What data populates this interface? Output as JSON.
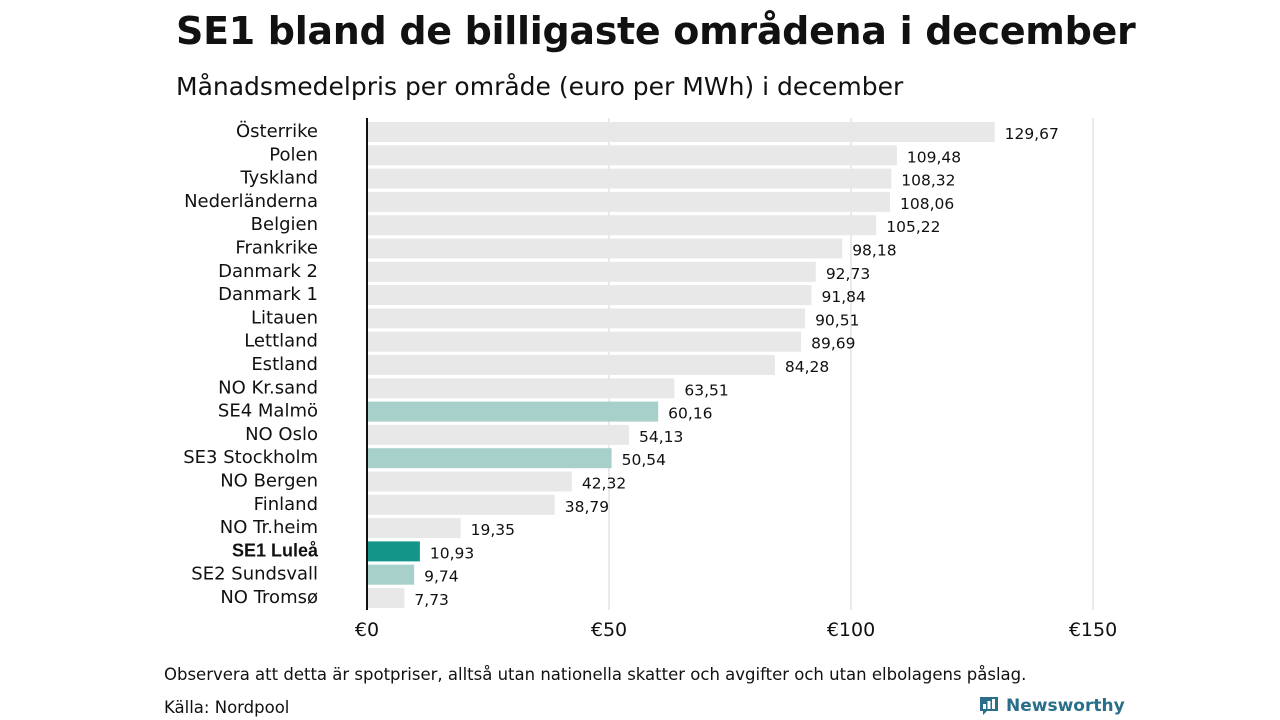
{
  "chart_data": {
    "type": "bar",
    "orientation": "horizontal",
    "title": "SE1 bland de billigaste områdena i december",
    "subtitle": "Månadsmedelpris per område (euro per MWh) i december",
    "categories": [
      "Österrike",
      "Polen",
      "Tyskland",
      "Nederländerna",
      "Belgien",
      "Frankrike",
      "Danmark  2",
      "Danmark  1",
      "Litauen",
      "Lettland",
      "Estland",
      "NO Kr.sand",
      "SE4  Malmö",
      "NO Oslo",
      "SE3  Stockholm",
      "NO Bergen",
      "Finland",
      "NO Tr.heim",
      "SE1 Luleå",
      "SE2  Sundsvall",
      "NO Tromsø"
    ],
    "values": [
      129.67,
      109.48,
      108.32,
      108.06,
      105.22,
      98.18,
      92.73,
      91.84,
      90.51,
      89.69,
      84.28,
      63.51,
      60.16,
      54.13,
      50.54,
      42.32,
      38.79,
      19.35,
      10.93,
      9.74,
      7.73
    ],
    "value_labels": [
      "129,67",
      "109,48",
      "108,32",
      "108,06",
      "105,22",
      "98,18",
      "92,73",
      "91,84",
      "90,51",
      "89,69",
      "84,28",
      "63,51",
      "60,16",
      "54,13",
      "50,54",
      "42,32",
      "38,79",
      "19,35",
      "10,93",
      "9,74",
      "7,73"
    ],
    "highlight": [
      "none",
      "none",
      "none",
      "none",
      "none",
      "none",
      "none",
      "none",
      "none",
      "none",
      "none",
      "none",
      "sweden",
      "none",
      "sweden",
      "none",
      "none",
      "none",
      "focus",
      "sweden",
      "none"
    ],
    "emphasized_category": "SE1 Luleå",
    "xlim": [
      0,
      150
    ],
    "xticks": [
      0,
      50,
      100,
      150
    ],
    "xtick_labels": [
      "€0",
      "€50",
      "€100",
      "€150"
    ],
    "grid": "vertical",
    "colors": {
      "default": "#e8e8e8",
      "sweden": "#a8d0cb",
      "focus": "#13958a",
      "grid": "#d6d6d6",
      "axis": "#111111"
    }
  },
  "footer": {
    "note": "Observera att detta är spotpriser, alltså utan nationella skatter och avgifter och utan elbolagens påslag.",
    "source": "Källa: Nordpool"
  },
  "brand": {
    "name": "Newsworthy",
    "icon": "bar-chart-logo-icon",
    "color": "#2a6f8a"
  }
}
